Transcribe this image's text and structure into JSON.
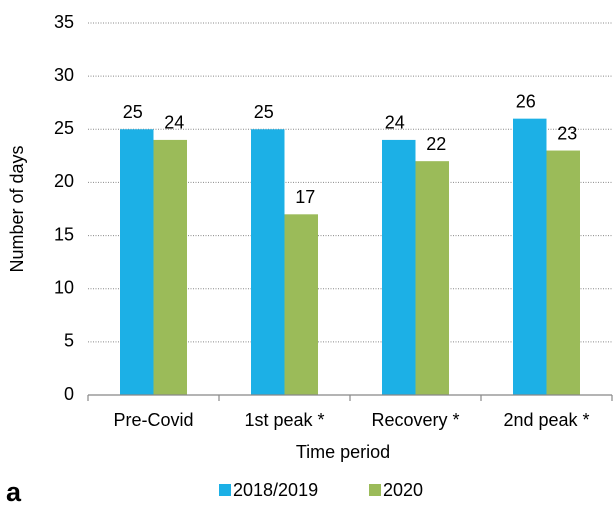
{
  "chart_data": {
    "type": "bar",
    "panel_label": "a",
    "x_label": "Time period",
    "y_label": "Number of days",
    "categories": [
      "Pre-Covid",
      "1st peak *",
      "Recovery *",
      "2nd peak *"
    ],
    "series": [
      {
        "name": "2018/2019",
        "color": "#1cb0e6",
        "values": [
          25,
          25,
          24,
          26
        ]
      },
      {
        "name": "2020",
        "color": "#9bbb59",
        "values": [
          24,
          17,
          22,
          23
        ]
      }
    ],
    "ylim": [
      0,
      35
    ],
    "yticks": [
      0,
      5,
      10,
      15,
      20,
      25,
      30,
      35
    ],
    "grid": true,
    "legend": "bottom"
  }
}
